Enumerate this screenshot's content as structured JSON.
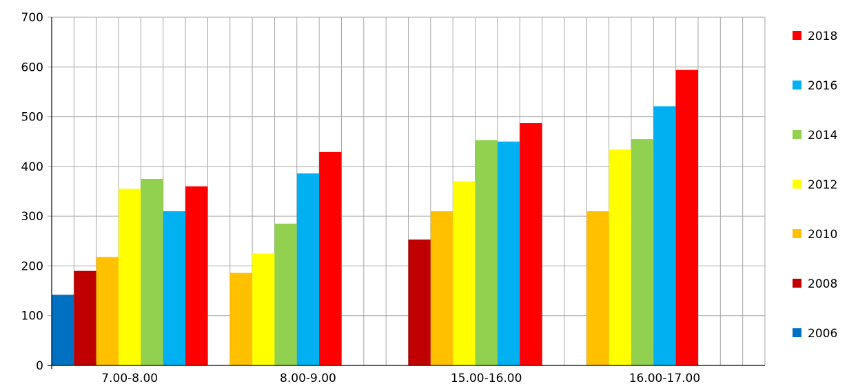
{
  "chart_data": {
    "type": "bar",
    "categories": [
      "7.00-8.00",
      "8.00-9.00",
      "15.00-16.00",
      "16.00-17.00"
    ],
    "series": [
      {
        "name": "2006",
        "color": "#0070C0",
        "values": [
          142,
          null,
          null,
          null
        ]
      },
      {
        "name": "2008",
        "color": "#C00000",
        "values": [
          190,
          null,
          253,
          null
        ]
      },
      {
        "name": "2010",
        "color": "#FFC000",
        "values": [
          218,
          186,
          310,
          310
        ]
      },
      {
        "name": "2012",
        "color": "#FFFF00",
        "values": [
          355,
          225,
          370,
          434
        ]
      },
      {
        "name": "2014",
        "color": "#92D050",
        "values": [
          375,
          285,
          453,
          455
        ]
      },
      {
        "name": "2016",
        "color": "#00B0F0",
        "values": [
          310,
          386,
          450,
          521
        ]
      },
      {
        "name": "2018",
        "color": "#FF0000",
        "values": [
          360,
          429,
          487,
          594
        ]
      }
    ],
    "ylim": [
      0,
      700
    ],
    "yticks": [
      0,
      100,
      200,
      300,
      400,
      500,
      600,
      700
    ],
    "grid": true,
    "legend_position": "right",
    "legend_order": [
      "2018",
      "2016",
      "2014",
      "2012",
      "2010",
      "2008",
      "2006"
    ]
  }
}
